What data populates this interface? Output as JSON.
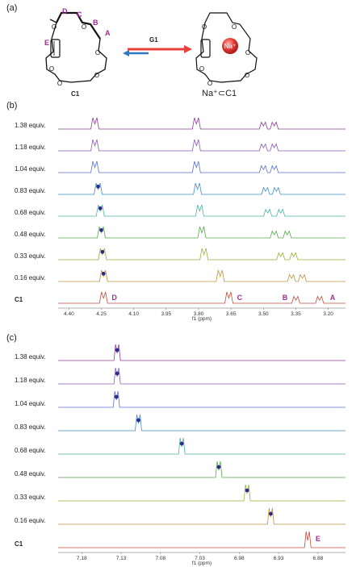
{
  "figure": {
    "panel_a_label": "(a)",
    "panel_b_label": "(b)",
    "panel_c_label": "(c)",
    "structure_left_label": "C1",
    "structure_right_label": "Na⁺⊂C1",
    "arrow_label": "G1",
    "ion_label": "Na⁺",
    "positions": {
      "D": "D",
      "C": "C",
      "B": "B",
      "A": "A",
      "E": "E"
    }
  },
  "chart_data": [
    {
      "type": "line",
      "panel": "(b)",
      "xlabel": "f1 (ppm)",
      "x_ticks": [
        "4.40",
        "4.25",
        "4.10",
        "3.95",
        "3.80",
        "3.65",
        "3.50",
        "3.35",
        "3.20"
      ],
      "xlim": [
        4.45,
        3.12
      ],
      "series": [
        {
          "name": "1.38 equiv.",
          "color": "#8e3c95",
          "marker": null,
          "peaks": [
            4.28,
            3.81,
            3.5,
            3.45
          ]
        },
        {
          "name": "1.18 equiv.",
          "color": "#8a5bb6",
          "marker": null,
          "peaks": [
            4.28,
            3.81,
            3.5,
            3.45
          ]
        },
        {
          "name": "1.04 equiv.",
          "color": "#5c6fcf",
          "marker": null,
          "peaks": [
            4.28,
            3.81,
            3.5,
            3.45
          ]
        },
        {
          "name": "0.83 equiv.",
          "color": "#3f8fc4",
          "marker": 4.265,
          "peaks": [
            4.265,
            3.805,
            3.49,
            3.44
          ]
        },
        {
          "name": "0.68 equiv.",
          "color": "#4fb2a4",
          "marker": 4.255,
          "peaks": [
            4.255,
            3.795,
            3.48,
            3.42
          ]
        },
        {
          "name": "0.48 equiv.",
          "color": "#58a94d",
          "marker": 4.25,
          "peaks": [
            4.25,
            3.785,
            3.45,
            3.39
          ]
        },
        {
          "name": "0.33 equiv.",
          "color": "#94b43a",
          "marker": 4.245,
          "peaks": [
            4.245,
            3.775,
            3.42,
            3.36
          ]
        },
        {
          "name": "0.16 equiv.",
          "color": "#c1933e",
          "marker": 4.24,
          "peaks": [
            4.24,
            3.7,
            3.37,
            3.32
          ]
        },
        {
          "name": "C1",
          "color": "#c44c3f",
          "marker": null,
          "peaks": [
            4.24,
            3.66,
            3.35,
            3.24
          ]
        }
      ]
    },
    {
      "type": "line",
      "panel": "(c)",
      "xlabel": "f1 (ppm)",
      "x_ticks": [
        "7.18",
        "7.13",
        "7.08",
        "7.03",
        "6.98",
        "6.93",
        "6.88"
      ],
      "xlim": [
        7.21,
        6.845
      ],
      "series": [
        {
          "name": "1.38 equiv.",
          "color": "#8e3c95",
          "marker": 7.135,
          "peak": 7.135
        },
        {
          "name": "1.18 equiv.",
          "color": "#8a5bb6",
          "marker": 7.135,
          "peak": 7.135
        },
        {
          "name": "1.04 equiv.",
          "color": "#5c6fcf",
          "marker": 7.136,
          "peak": 7.136
        },
        {
          "name": "0.83 equiv.",
          "color": "#3f8fc4",
          "marker": 7.108,
          "peak": 7.108
        },
        {
          "name": "0.68 equiv.",
          "color": "#4fb2a4",
          "marker": 7.053,
          "peak": 7.053
        },
        {
          "name": "0.48 equiv.",
          "color": "#58a94d",
          "marker": 7.006,
          "peak": 7.006
        },
        {
          "name": "0.33 equiv.",
          "color": "#94b43a",
          "marker": 6.97,
          "peak": 6.97
        },
        {
          "name": "0.16 equiv.",
          "color": "#c1933e",
          "marker": 6.94,
          "peak": 6.94
        },
        {
          "name": "C1",
          "color": "#c44c3f",
          "marker": null,
          "peak": 6.893
        }
      ]
    }
  ]
}
